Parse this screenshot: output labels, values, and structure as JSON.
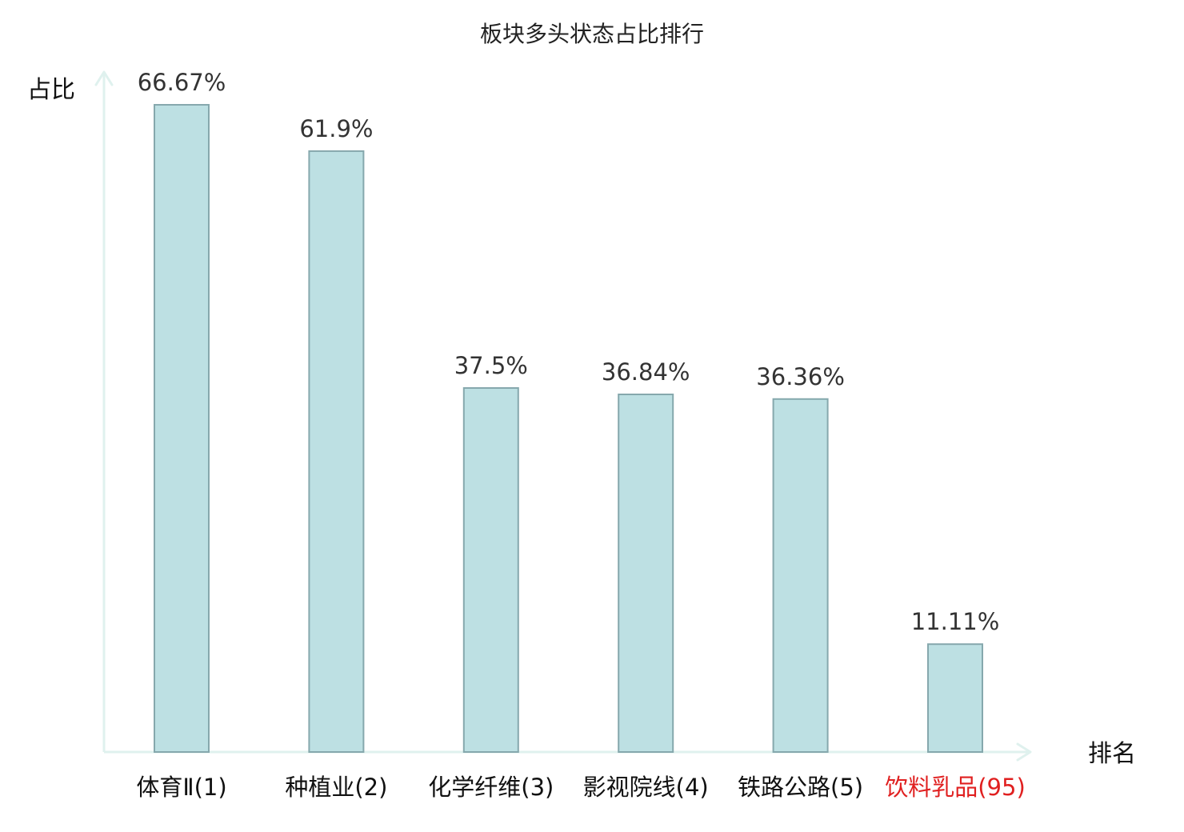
{
  "chart_data": {
    "type": "bar",
    "title": "板块多头状态占比排行",
    "ylabel": "占比",
    "xlabel": "排名",
    "categories": [
      {
        "name": "体育Ⅱ",
        "rank": "(1)",
        "highlight": false
      },
      {
        "name": "种植业",
        "rank": "(2)",
        "highlight": false
      },
      {
        "name": "化学纤维",
        "rank": "(3)",
        "highlight": false
      },
      {
        "name": "影视院线",
        "rank": "(4)",
        "highlight": false
      },
      {
        "name": "铁路公路",
        "rank": "(5)",
        "highlight": false
      },
      {
        "name": "饮料乳品",
        "rank": "(95)",
        "highlight": true
      }
    ],
    "values": [
      66.67,
      61.9,
      37.5,
      36.84,
      36.36,
      11.11
    ],
    "value_labels": [
      "66.67%",
      "61.9%",
      "37.5%",
      "36.84%",
      "36.36%",
      "11.11%"
    ],
    "ylim": [
      0,
      70
    ],
    "grid": false,
    "legend": "none",
    "colors": {
      "bar_fill": "#bde0e3",
      "bar_stroke": "#86a8ad",
      "axis": "#dff1ee",
      "highlight_text": "#e02020",
      "text": "#111111"
    }
  }
}
